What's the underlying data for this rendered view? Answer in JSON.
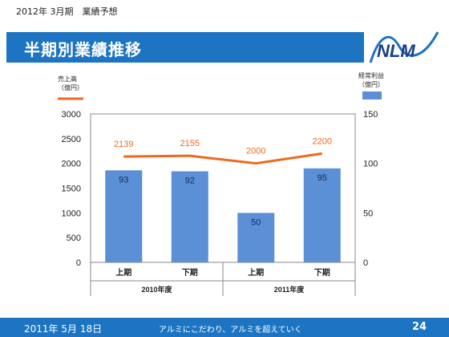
{
  "header": {
    "subtitle": "2012年 3月期　業績予想",
    "title": "半期別業績推移"
  },
  "logo": {
    "text": "NLM",
    "icon": "nlm-logo"
  },
  "footer": {
    "date": "2011年 5月 18日",
    "slogan": "アルミにこだわり、アルミを超えていく",
    "page": "24"
  },
  "colors": {
    "accent": "#1c74c2",
    "bar": "#5b8fd6",
    "line": "#ee6a1e"
  },
  "chart_data": {
    "type": "bar",
    "categories": [
      "上期",
      "下期",
      "上期",
      "下期"
    ],
    "groups": [
      {
        "label": "2010年度",
        "span": 2
      },
      {
        "label": "2011年度",
        "span": 2
      }
    ],
    "series": [
      {
        "name": "経常利益",
        "axis": "right",
        "type": "bar",
        "values": [
          93,
          92,
          50,
          95
        ]
      },
      {
        "name": "売上高",
        "axis": "left",
        "type": "line",
        "values": [
          2139,
          2155,
          2000,
          2200
        ]
      }
    ],
    "y_left": {
      "label": "売上高",
      "unit": "（億円）",
      "ylim": [
        0,
        3000
      ],
      "ticks": [
        0,
        500,
        1000,
        1500,
        2000,
        2500,
        3000
      ]
    },
    "y_right": {
      "label": "経常利益",
      "unit": "（億円）",
      "ylim": [
        0,
        150
      ],
      "ticks": [
        0,
        50,
        100,
        150
      ]
    },
    "grid": false,
    "legend": "top, beside each axis"
  }
}
